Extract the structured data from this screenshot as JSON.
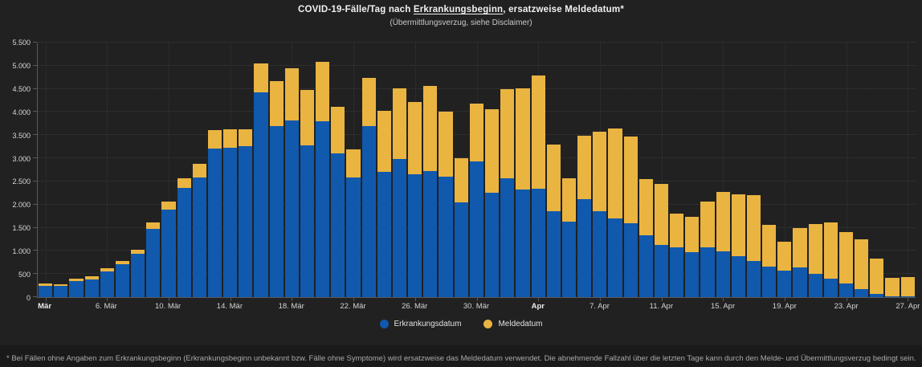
{
  "header": {
    "title_prefix": "COVID-19-Fälle/Tag nach ",
    "title_underlined": "Erkrankungsbeginn",
    "title_suffix": ", ersatzweise Meldedatum*",
    "subtitle": "(Übermittlungsverzug, siehe Disclaimer)"
  },
  "legend": {
    "items": [
      {
        "label": "Erkrankungsdatum",
        "color": "#1059ad"
      },
      {
        "label": "Meldedatum",
        "color": "#eab441"
      }
    ]
  },
  "footer": {
    "disclaimer": "* Bei Fällen ohne Angaben zum Erkrankungsbeginn (Erkrankungsbeginn unbekannt bzw. Fälle ohne Symptome) wird ersatzweise das Meldedatum verwendet. Die abnehmende Fallzahl über die letzten Tage kann durch den Melde- und Übermittlungsverzug bedingt sein."
  },
  "chart_data": {
    "type": "bar",
    "stacked": true,
    "title": "COVID-19-Fälle/Tag nach Erkrankungsbeginn, ersatzweise Meldedatum*",
    "subtitle": "(Übermittlungsverzug, siehe Disclaimer)",
    "xlabel": "",
    "ylabel": "",
    "ylim": [
      0,
      5500
    ],
    "y_tick_step": 500,
    "y_tick_labels": [
      "0",
      "500",
      "1.000",
      "1.500",
      "2.000",
      "2.500",
      "3.000",
      "3.500",
      "4.000",
      "4.500",
      "5.000",
      "5.500"
    ],
    "grid": "dotted",
    "legend_position": "bottom",
    "categories": [
      "2. Mär",
      "3. Mär",
      "4. Mär",
      "5. Mär",
      "6. Mär",
      "7. Mär",
      "8. Mär",
      "9. Mär",
      "10. Mär",
      "11. Mär",
      "12. Mär",
      "13. Mär",
      "14. Mär",
      "15. Mär",
      "16. Mär",
      "17. Mär",
      "18. Mär",
      "19. Mär",
      "20. Mär",
      "21. Mär",
      "22. Mär",
      "23. Mär",
      "24. Mär",
      "25. Mär",
      "26. Mär",
      "27. Mär",
      "28. Mär",
      "29. Mär",
      "30. Mär",
      "31. Mär",
      "1. Apr",
      "2. Apr",
      "3. Apr",
      "4. Apr",
      "5. Apr",
      "6. Apr",
      "7. Apr",
      "8. Apr",
      "9. Apr",
      "10. Apr",
      "11. Apr",
      "12. Apr",
      "13. Apr",
      "14. Apr",
      "15. Apr",
      "16. Apr",
      "17. Apr",
      "18. Apr",
      "19. Apr",
      "20. Apr",
      "21. Apr",
      "22. Apr",
      "23. Apr",
      "24. Apr",
      "25. Apr",
      "26. Apr",
      "27. Apr"
    ],
    "x_ticks": [
      {
        "index": 0,
        "label": "Mär",
        "bold": true
      },
      {
        "index": 4,
        "label": "6. Mär"
      },
      {
        "index": 8,
        "label": "10. Mär"
      },
      {
        "index": 12,
        "label": "14. Mär"
      },
      {
        "index": 16,
        "label": "18. Mär"
      },
      {
        "index": 20,
        "label": "22. Mär"
      },
      {
        "index": 24,
        "label": "26. Mär"
      },
      {
        "index": 28,
        "label": "30. Mär"
      },
      {
        "index": 32,
        "label": "Apr",
        "bold": true
      },
      {
        "index": 36,
        "label": "7. Apr"
      },
      {
        "index": 40,
        "label": "11. Apr"
      },
      {
        "index": 44,
        "label": "15. Apr"
      },
      {
        "index": 48,
        "label": "19. Apr"
      },
      {
        "index": 52,
        "label": "23. Apr"
      },
      {
        "index": 56,
        "label": "27. Apr"
      }
    ],
    "series": [
      {
        "name": "Erkrankungsdatum",
        "color": "#1059ad",
        "values": [
          250,
          235,
          350,
          390,
          550,
          710,
          940,
          1480,
          1900,
          2360,
          2590,
          3210,
          3220,
          3270,
          4420,
          3700,
          3820,
          3280,
          3800,
          3100,
          2580,
          3700,
          2700,
          2990,
          2650,
          2730,
          2610,
          2050,
          2940,
          2250,
          2570,
          2320,
          2350,
          1860,
          1630,
          2120,
          1860,
          1700,
          1590,
          1330,
          1125,
          1070,
          970,
          1075,
          990,
          890,
          780,
          665,
          575,
          635,
          505,
          400,
          295,
          180,
          75,
          25,
          15
        ]
      },
      {
        "name": "Meldedatum",
        "color": "#eab441",
        "values": [
          50,
          50,
          50,
          60,
          80,
          70,
          80,
          130,
          160,
          215,
          290,
          400,
          400,
          360,
          630,
          970,
          1120,
          1190,
          1280,
          1020,
          610,
          1030,
          1330,
          1530,
          1575,
          1840,
          1390,
          950,
          1240,
          1810,
          1920,
          2190,
          2440,
          1440,
          935,
          1360,
          1710,
          1940,
          1875,
          1220,
          1320,
          740,
          765,
          985,
          1290,
          1340,
          1430,
          895,
          625,
          865,
          1070,
          1220,
          1105,
          1065,
          760,
          395,
          415
        ]
      }
    ]
  }
}
